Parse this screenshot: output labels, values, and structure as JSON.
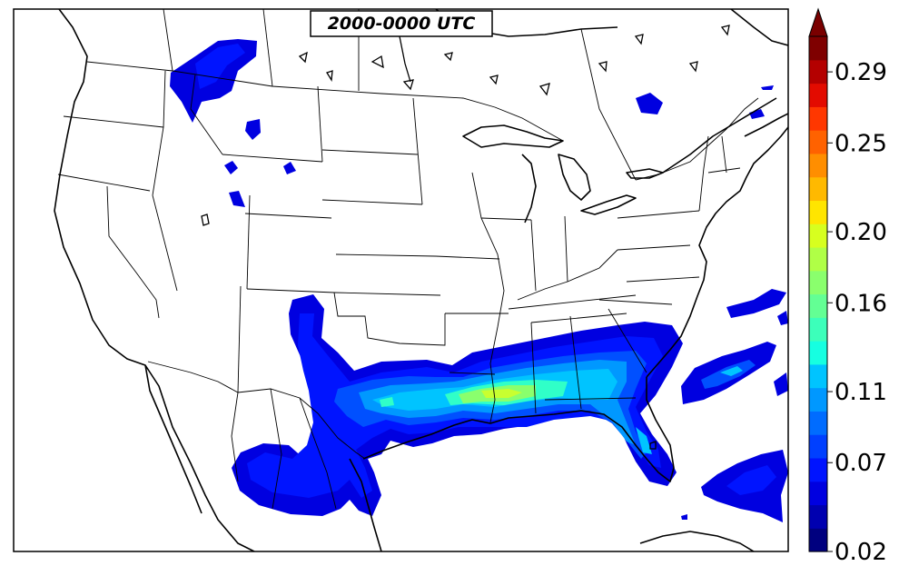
{
  "map": {
    "time_label": "2000-0000 UTC",
    "region": "contiguous United States, southern Canada, northern Mexico",
    "field_colormap": "jet"
  },
  "colorbar": {
    "orientation": "vertical",
    "extend": "max",
    "min": 0.02,
    "max": 0.31,
    "tick_labels": [
      "0.02",
      "0.07",
      "0.11",
      "0.16",
      "0.20",
      "0.25",
      "0.29"
    ],
    "tick_values": [
      0.02,
      0.07,
      0.11,
      0.16,
      0.2,
      0.25,
      0.29
    ],
    "colors": [
      "#00007f",
      "#0000b0",
      "#0000e0",
      "#0014ff",
      "#0040ff",
      "#006cff",
      "#0098ff",
      "#00c4ff",
      "#16ffe1",
      "#3cffba",
      "#63ff94",
      "#8aff6d",
      "#b0ff46",
      "#d7ff1f",
      "#ffe500",
      "#ffb900",
      "#ff8e00",
      "#ff6200",
      "#ff3700",
      "#e30b00",
      "#b40000",
      "#7f0000"
    ]
  },
  "field": {
    "level_colors": {
      "l1": "#0000e0",
      "l2": "#0014ff",
      "l3": "#0050ff",
      "l4": "#0098ff",
      "l5": "#00c4ff",
      "l6": "#30ffc8",
      "l7": "#8aff6d",
      "l8": "#c8ff30"
    }
  }
}
